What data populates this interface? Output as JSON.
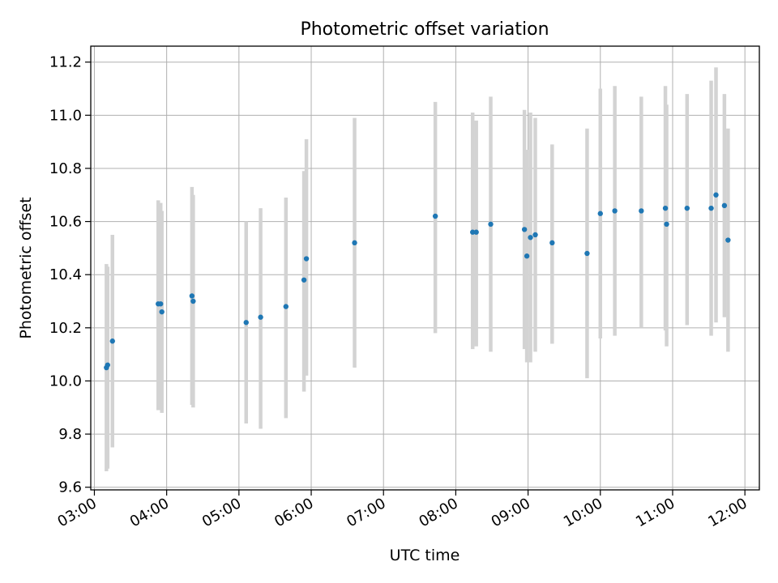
{
  "chart_data": {
    "type": "scatter",
    "title": "Photometric offset variation",
    "xlabel": "UTC time",
    "ylabel": "Photometric offset",
    "xlim": [
      "02:57",
      "12:12"
    ],
    "ylim": [
      9.59,
      11.26
    ],
    "x_ticks": [
      "03:00",
      "04:00",
      "05:00",
      "06:00",
      "07:00",
      "08:00",
      "09:00",
      "10:00",
      "11:00",
      "12:00"
    ],
    "y_ticks": [
      "9.6",
      "9.8",
      "10.0",
      "10.2",
      "10.4",
      "10.6",
      "10.8",
      "11.0",
      "11.2"
    ],
    "grid": true,
    "error_bar_color": "#d3d3d3",
    "marker_color": "#1f77b4",
    "series": [
      {
        "points": [
          {
            "t": "03:10",
            "y": 10.05,
            "lo": 9.66,
            "hi": 10.44
          },
          {
            "t": "03:11",
            "y": 10.06,
            "lo": 9.67,
            "hi": 10.43
          },
          {
            "t": "03:15",
            "y": 10.15,
            "lo": 9.75,
            "hi": 10.55
          },
          {
            "t": "03:53",
            "y": 10.29,
            "lo": 9.89,
            "hi": 10.68
          },
          {
            "t": "03:55",
            "y": 10.29,
            "lo": 9.89,
            "hi": 10.67
          },
          {
            "t": "03:56",
            "y": 10.26,
            "lo": 9.88,
            "hi": 10.64
          },
          {
            "t": "04:21",
            "y": 10.32,
            "lo": 9.91,
            "hi": 10.73
          },
          {
            "t": "04:22",
            "y": 10.3,
            "lo": 9.9,
            "hi": 10.7
          },
          {
            "t": "05:06",
            "y": 10.22,
            "lo": 9.84,
            "hi": 10.6
          },
          {
            "t": "05:18",
            "y": 10.24,
            "lo": 9.82,
            "hi": 10.65
          },
          {
            "t": "05:39",
            "y": 10.28,
            "lo": 9.86,
            "hi": 10.69
          },
          {
            "t": "05:54",
            "y": 10.38,
            "lo": 9.96,
            "hi": 10.79
          },
          {
            "t": "05:56",
            "y": 10.46,
            "lo": 10.02,
            "hi": 10.91
          },
          {
            "t": "06:36",
            "y": 10.52,
            "lo": 10.05,
            "hi": 10.99
          },
          {
            "t": "07:43",
            "y": 10.62,
            "lo": 10.18,
            "hi": 11.05
          },
          {
            "t": "08:14",
            "y": 10.56,
            "lo": 10.12,
            "hi": 11.01
          },
          {
            "t": "08:17",
            "y": 10.56,
            "lo": 10.13,
            "hi": 10.98
          },
          {
            "t": "08:29",
            "y": 10.59,
            "lo": 10.11,
            "hi": 11.07
          },
          {
            "t": "08:57",
            "y": 10.57,
            "lo": 10.12,
            "hi": 11.02
          },
          {
            "t": "08:59",
            "y": 10.47,
            "lo": 10.07,
            "hi": 10.87
          },
          {
            "t": "09:02",
            "y": 10.54,
            "lo": 10.07,
            "hi": 11.01
          },
          {
            "t": "09:06",
            "y": 10.55,
            "lo": 10.11,
            "hi": 10.99
          },
          {
            "t": "09:20",
            "y": 10.52,
            "lo": 10.14,
            "hi": 10.89
          },
          {
            "t": "09:49",
            "y": 10.48,
            "lo": 10.01,
            "hi": 10.95
          },
          {
            "t": "10:00",
            "y": 10.63,
            "lo": 10.16,
            "hi": 11.1
          },
          {
            "t": "10:12",
            "y": 10.64,
            "lo": 10.17,
            "hi": 11.11
          },
          {
            "t": "10:34",
            "y": 10.64,
            "lo": 10.2,
            "hi": 11.07
          },
          {
            "t": "10:54",
            "y": 10.65,
            "lo": 10.19,
            "hi": 11.11
          },
          {
            "t": "10:55",
            "y": 10.59,
            "lo": 10.13,
            "hi": 11.04
          },
          {
            "t": "11:12",
            "y": 10.65,
            "lo": 10.21,
            "hi": 11.08
          },
          {
            "t": "11:32",
            "y": 10.65,
            "lo": 10.17,
            "hi": 11.13
          },
          {
            "t": "11:36",
            "y": 10.7,
            "lo": 10.22,
            "hi": 11.18
          },
          {
            "t": "11:43",
            "y": 10.66,
            "lo": 10.24,
            "hi": 11.08
          },
          {
            "t": "11:46",
            "y": 10.53,
            "lo": 10.11,
            "hi": 10.95
          }
        ]
      }
    ]
  }
}
